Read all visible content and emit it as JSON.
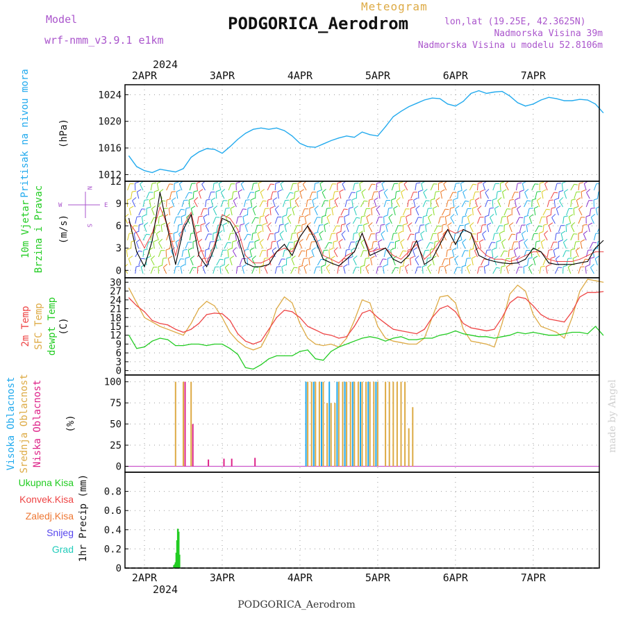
{
  "header": {
    "model_label": "Model",
    "model_value": "wrf-nmm_v3.9.1  e1km",
    "meteogram": "Meteogram",
    "station": "PODGORICA_Aerodrom",
    "lonlat": "lon,lat (19.25E, 42.3625N)",
    "altitude": "Nadmorska Visina 39m",
    "model_altitude": "Nadmorska Visina u modelu 52.8106m",
    "footer_station": "PODGORICA_Aerodrom",
    "credit": "made by Angel",
    "year": "2024"
  },
  "colors": {
    "pressure": "#22aaee",
    "temp2m": "#ee4444",
    "sfc": "#ddaa44",
    "dewpt": "#22cc22",
    "cloud_high": "#22aaee",
    "cloud_mid": "#ddaa44",
    "cloud_low": "#dd2288",
    "precip_total": "#22cc22",
    "wind_label": "#22cc22",
    "purple": "#aa55cc"
  },
  "chart_data": [
    {
      "type": "line",
      "ylabel_lines": [
        "Pritisak na nivou mora"
      ],
      "unit": "(hPa)",
      "ylim": [
        1011,
        1025.5
      ],
      "yticks": [
        1012,
        1016,
        1020,
        1024
      ],
      "grid": true,
      "x_ticks": [
        "2APR",
        "3APR",
        "4APR",
        "5APR",
        "6APR",
        "7APR"
      ],
      "x_time": [
        0,
        1,
        2,
        3,
        4,
        5,
        6,
        7,
        8,
        9,
        10,
        11,
        12,
        13,
        14,
        15,
        16,
        17,
        18,
        19,
        20,
        21,
        22,
        23,
        24,
        25,
        26,
        27,
        28,
        29,
        30,
        31,
        32,
        33,
        34,
        35,
        36,
        37,
        38,
        39,
        40,
        41,
        42,
        43,
        44,
        45,
        46,
        47,
        48,
        49,
        50,
        51,
        52,
        53,
        54,
        55,
        56,
        57,
        58,
        59,
        60,
        61
      ],
      "series": [
        {
          "name": "Pritisak na nivou mora",
          "values": [
            1014.8,
            1013.2,
            1012.6,
            1012.3,
            1012.8,
            1012.6,
            1012.4,
            1012.9,
            1014.6,
            1015.4,
            1015.9,
            1015.8,
            1015.2,
            1016.2,
            1017.3,
            1018.2,
            1018.8,
            1019.0,
            1018.8,
            1019.0,
            1018.6,
            1017.8,
            1016.7,
            1016.2,
            1016.1,
            1016.6,
            1017.1,
            1017.5,
            1017.8,
            1017.6,
            1018.4,
            1018.0,
            1017.8,
            1019.2,
            1020.7,
            1021.5,
            1022.2,
            1022.7,
            1023.2,
            1023.5,
            1023.4,
            1022.6,
            1022.3,
            1023.0,
            1024.2,
            1024.6,
            1024.2,
            1024.4,
            1024.5,
            1023.8,
            1022.8,
            1022.3,
            1022.6,
            1023.2,
            1023.6,
            1023.4,
            1023.1,
            1023.1,
            1023.3,
            1023.2,
            1022.6,
            1021.3
          ]
        }
      ]
    },
    {
      "type": "line",
      "ylabel_lines": [
        "10m Vjetar",
        "Brzina i Pravac"
      ],
      "unit": "(m/s)",
      "ylim": [
        -1,
        12
      ],
      "yticks": [
        0,
        3,
        6,
        9,
        12
      ],
      "grid": true,
      "compass": {
        "n": "N",
        "w": "W",
        "e": "E",
        "s": "S"
      },
      "series": [
        {
          "name": "10m Vjetar",
          "values": [
            7,
            2.5,
            0.5,
            4,
            10.5,
            5.5,
            0.8,
            5.5,
            7.5,
            2,
            0.5,
            3,
            7,
            6.5,
            4.5,
            1,
            0.5,
            0.5,
            0.8,
            2.5,
            3.5,
            2,
            4.5,
            6,
            4,
            1.5,
            1,
            0.6,
            1.5,
            2.5,
            5,
            2,
            2.5,
            3,
            1.5,
            1,
            2,
            4,
            0.8,
            1.5,
            3.5,
            5.5,
            3.5,
            5.5,
            5,
            2,
            1.5,
            1.2,
            1,
            0.9,
            1,
            1.5,
            3,
            2.5,
            1,
            0.8,
            0.8,
            0.8,
            1,
            1.2,
            3,
            4
          ]
        },
        {
          "name": "wind-gust",
          "values": [
            6.5,
            5,
            3,
            5,
            8.5,
            6,
            2,
            6,
            7.8,
            3.5,
            1,
            3.5,
            7.5,
            7,
            5.5,
            2,
            1,
            1,
            1.5,
            2.5,
            3,
            2.5,
            4.5,
            6,
            4.5,
            2,
            1.5,
            1,
            2,
            2.5,
            5,
            2.5,
            2.8,
            3,
            2,
            1.5,
            2.5,
            3.5,
            1.5,
            2.5,
            4,
            5.5,
            5,
            5.5,
            5,
            3,
            2,
            1.5,
            1.5,
            1.2,
            1.5,
            2,
            2.5,
            2.5,
            1.5,
            1.2,
            1.2,
            1.2,
            1.5,
            2,
            2.5,
            2.5
          ]
        }
      ]
    },
    {
      "type": "line",
      "ylabel_lines": [
        "2m Temp",
        "SFC Temp",
        "dewpt Temp"
      ],
      "unit": "(C)",
      "ylim": [
        -1.5,
        31.5
      ],
      "yticks": [
        0,
        3,
        6,
        9,
        12,
        15,
        18,
        21,
        24,
        27,
        30
      ],
      "grid": true,
      "series": [
        {
          "name": "2m Temp",
          "values": [
            24.7,
            22,
            20,
            17,
            16,
            15.5,
            14,
            13,
            14,
            16,
            19,
            19.5,
            19.3,
            17,
            12.5,
            10,
            9,
            10,
            14,
            18,
            20.5,
            20,
            18,
            15,
            13.8,
            12.5,
            12,
            11,
            11.5,
            15,
            19.5,
            20.5,
            18,
            16,
            14,
            13.5,
            13,
            12.5,
            14,
            18,
            21,
            22,
            20,
            16,
            14.5,
            14,
            13.5,
            14,
            18,
            23,
            25,
            24.5,
            22,
            19,
            17.5,
            17,
            16.5,
            20,
            25,
            26.5,
            26.5,
            26.8
          ]
        },
        {
          "name": "SFC Temp",
          "values": [
            28,
            23,
            18,
            16.5,
            15,
            14,
            13,
            12,
            16,
            21,
            23.5,
            22,
            18,
            13,
            10,
            8,
            7,
            8,
            13,
            21,
            25,
            23,
            16,
            11,
            9,
            8.5,
            9,
            8,
            11,
            17,
            24,
            23,
            15,
            11,
            10,
            9.5,
            9,
            9,
            11,
            18,
            25,
            25.5,
            23,
            14,
            10,
            9.5,
            9,
            8,
            16,
            26,
            29,
            27,
            19,
            15,
            14,
            13,
            11,
            18,
            27,
            31,
            30.5,
            30
          ]
        },
        {
          "name": "dewpt Temp",
          "values": [
            12,
            7.5,
            8,
            10,
            11,
            10.5,
            8.5,
            8.5,
            9,
            9,
            8.5,
            9,
            9,
            7.5,
            5.5,
            1,
            0.5,
            2,
            4,
            5,
            5,
            5,
            6.5,
            7,
            4,
            3.5,
            6.5,
            8,
            9,
            10,
            11,
            11.5,
            11,
            10,
            11,
            11.5,
            10.5,
            10.5,
            11,
            11,
            12,
            12.5,
            13.5,
            12.5,
            12,
            11.5,
            11.5,
            11,
            11.5,
            12,
            13,
            12.5,
            13,
            12.5,
            12,
            12,
            12.5,
            13,
            13,
            12.5,
            15,
            12
          ]
        }
      ]
    },
    {
      "type": "bar",
      "ylabel_lines": [
        "Visoka Oblacnost",
        "Srednja Oblacnost",
        "Niska Oblacnost"
      ],
      "unit": "(%)",
      "ylim": [
        -7,
        108
      ],
      "yticks": [
        0,
        25,
        50,
        75,
        100
      ],
      "grid": true,
      "series": [
        {
          "name": "Visoka Oblacnost",
          "values": [
            0,
            0,
            0,
            0,
            0,
            0,
            0,
            0,
            0,
            0,
            0,
            0,
            0,
            0,
            0,
            0,
            0,
            0,
            0,
            0,
            0,
            0,
            0,
            100,
            100,
            100,
            100,
            100,
            100,
            100,
            100,
            100,
            100,
            0,
            0,
            0,
            0,
            0,
            0,
            0,
            0,
            0,
            0,
            0,
            0,
            0,
            0,
            0,
            0,
            0,
            0,
            0,
            0,
            0,
            0,
            0,
            0,
            0,
            0,
            0,
            0,
            0
          ]
        },
        {
          "name": "Srednja Oblacnost",
          "values": [
            0,
            0,
            0,
            0,
            0,
            0,
            100,
            100,
            100,
            0,
            0,
            0,
            0,
            0,
            0,
            0,
            0,
            0,
            0,
            0,
            0,
            0,
            0,
            100,
            100,
            100,
            75,
            100,
            100,
            100,
            100,
            100,
            100,
            100,
            100,
            100,
            45,
            0,
            0,
            0,
            0,
            0,
            0,
            0,
            0,
            0,
            0,
            0,
            0,
            0,
            0,
            0,
            0,
            0,
            0,
            0,
            0,
            0,
            0,
            0,
            0,
            0
          ]
        },
        {
          "name": "Niska Oblacnost",
          "values": [
            0,
            0,
            0,
            0,
            0,
            0,
            0,
            100,
            50,
            0,
            8,
            0,
            9,
            9,
            0,
            0,
            10,
            0,
            0,
            0,
            0,
            0,
            0,
            0,
            0,
            0,
            0,
            0,
            0,
            0,
            0,
            0,
            0,
            0,
            0,
            0,
            0,
            0,
            0,
            0,
            0,
            0,
            0,
            0,
            0,
            0,
            0,
            0,
            0,
            0,
            0,
            0,
            0,
            0,
            0,
            0,
            0,
            0,
            0,
            0,
            0,
            0
          ]
        }
      ],
      "mid_extra": [
        {
          "x": 23.5,
          "value": 100
        },
        {
          "x": 24.5,
          "value": 100
        },
        {
          "x": 25.5,
          "value": 75
        },
        {
          "x": 26.5,
          "value": 75
        },
        {
          "x": 27.5,
          "value": 100
        },
        {
          "x": 28.5,
          "value": 100
        },
        {
          "x": 29.5,
          "value": 100
        },
        {
          "x": 30.5,
          "value": 100
        },
        {
          "x": 31.5,
          "value": 100
        },
        {
          "x": 33.5,
          "value": 100
        },
        {
          "x": 34.5,
          "value": 100
        },
        {
          "x": 35.5,
          "value": 100
        },
        {
          "x": 36.5,
          "value": 70
        }
      ]
    },
    {
      "type": "bar",
      "ylabel_lines": [
        "Ukupna Kisa",
        "Konvek.Kisa",
        "Zaledj.Kisa",
        "Snijeg",
        "Grad"
      ],
      "unit": "1hr Precip (mm)",
      "ylim": [
        0,
        1
      ],
      "yticks": [
        0,
        0.2,
        0.4,
        0.6,
        0.8
      ],
      "grid": true,
      "x_ticks": [
        "2APR",
        "3APR",
        "4APR",
        "5APR",
        "6APR",
        "7APR"
      ],
      "series": [
        {
          "name": "Ukupna Kisa",
          "x": [
            5.8,
            5.9,
            6.0,
            6.1,
            6.2,
            6.3,
            6.4,
            6.5
          ],
          "values": [
            0.03,
            0.04,
            0.06,
            0.16,
            0.29,
            0.41,
            0.38,
            0.14
          ]
        }
      ]
    }
  ]
}
